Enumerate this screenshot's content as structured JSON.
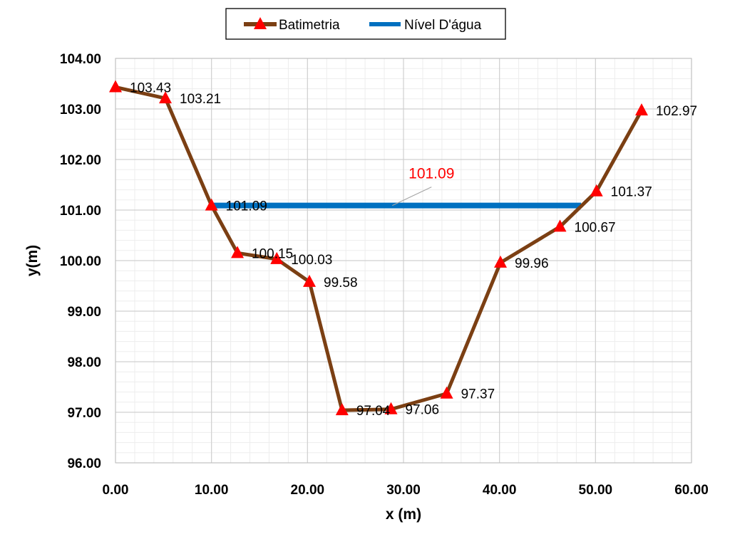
{
  "chart_data": {
    "type": "line",
    "xlabel": "x (m)",
    "ylabel": "y(m)",
    "xlim": [
      0,
      60
    ],
    "ylim": [
      96,
      104
    ],
    "x_ticks": [
      "0.00",
      "10.00",
      "20.00",
      "30.00",
      "40.00",
      "50.00",
      "60.00"
    ],
    "y_ticks": [
      "96.00",
      "97.00",
      "98.00",
      "99.00",
      "100.00",
      "101.00",
      "102.00",
      "103.00",
      "104.00"
    ],
    "grid": true,
    "legend_position": "top-center",
    "series": [
      {
        "name": "Batimetria",
        "color": "#7B3F13",
        "marker_color": "#FF0000",
        "marker": "triangle",
        "x": [
          0,
          5.2,
          10,
          12.7,
          16.8,
          20.2,
          23.6,
          28.7,
          34.5,
          40.1,
          46.3,
          50.1,
          54.8
        ],
        "y": [
          103.43,
          103.21,
          101.09,
          100.15,
          100.03,
          99.58,
          97.04,
          97.06,
          97.37,
          99.96,
          100.67,
          101.37,
          102.97
        ],
        "labels": [
          "103.43",
          "103.21",
          "101.09",
          "100.15",
          "100.03",
          "99.58",
          "97.04",
          "97.06",
          "97.37",
          "99.96",
          "100.67",
          "101.37",
          "102.97"
        ]
      },
      {
        "name": "Nível D'água",
        "color": "#0070C0",
        "x": [
          10,
          48.5
        ],
        "y": [
          101.09,
          101.09
        ]
      }
    ],
    "annotation": {
      "text": "101.09",
      "color": "#FF0000",
      "points_to": [
        29.5,
        101.09
      ]
    }
  }
}
